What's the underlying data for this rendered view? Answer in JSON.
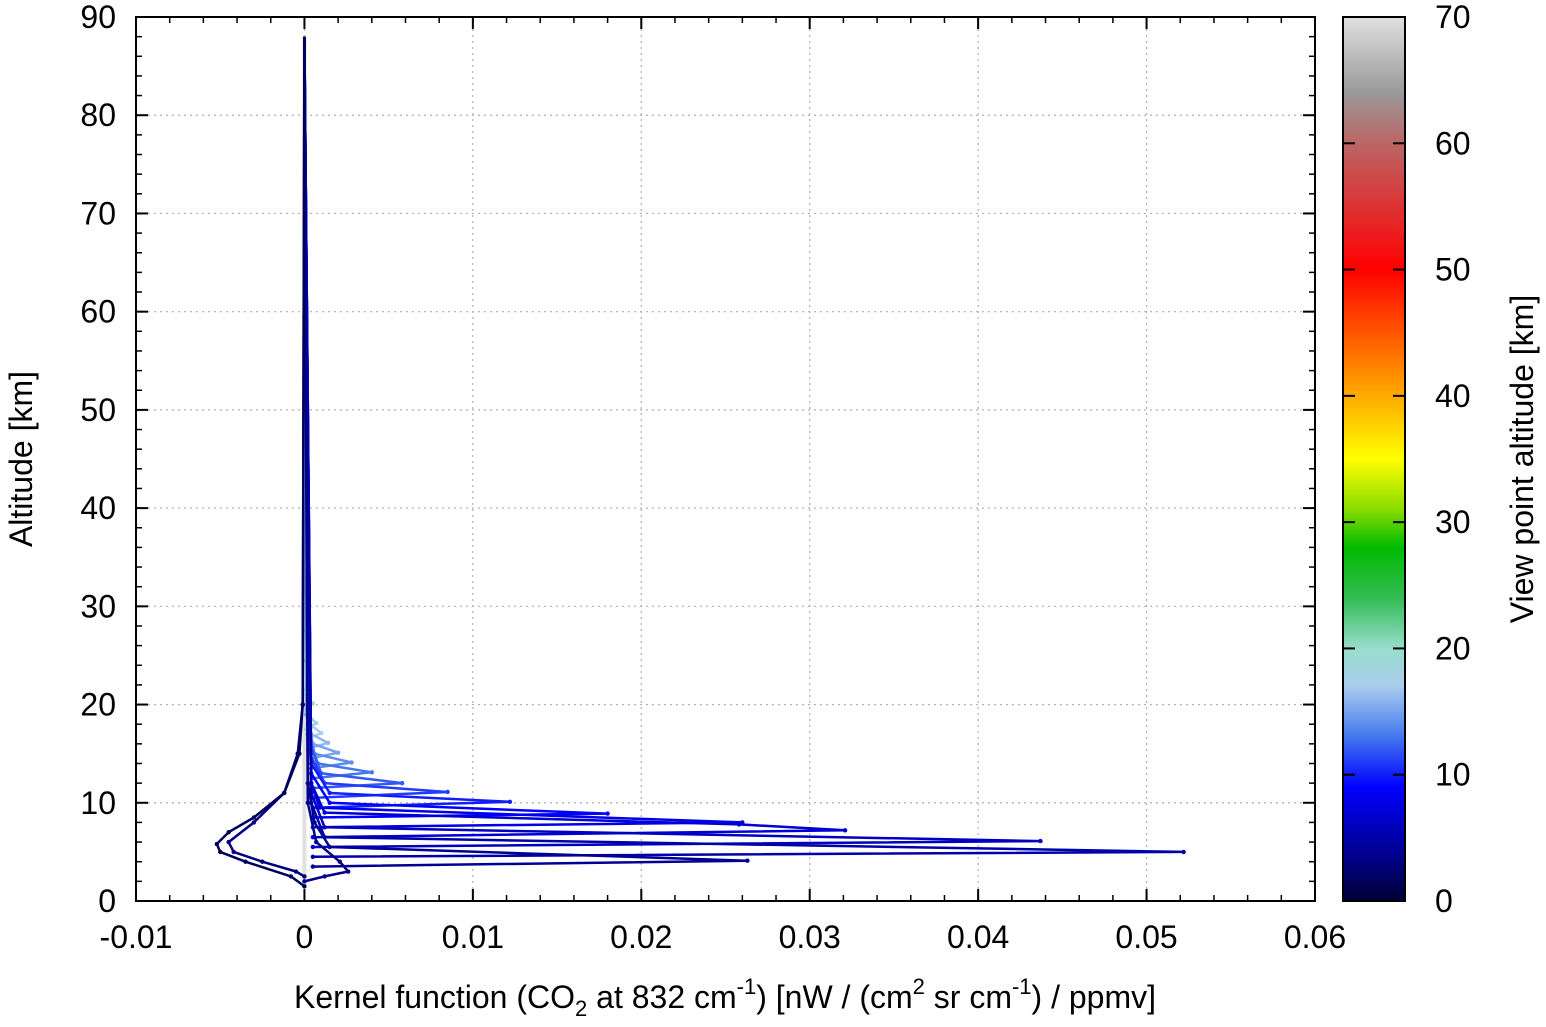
{
  "chart_data": {
    "type": "line",
    "title": "",
    "xlabel": {
      "pre": "Kernel function (CO",
      "sub": "2",
      "mid": " at 832 cm",
      "sup1": "-1",
      "post1": ") [nW / (cm",
      "sup2": "2",
      "post2": " sr cm",
      "sup3": "-1",
      "post3": ") / ppmv]"
    },
    "ylabel": "Altitude [km]",
    "xlim": [
      -0.01,
      0.06
    ],
    "ylim": [
      0,
      90
    ],
    "xticks": [
      -0.01,
      0,
      0.01,
      0.02,
      0.03,
      0.04,
      0.05,
      0.06
    ],
    "xtick_labels": [
      "-0.01",
      "0",
      "0.01",
      "0.02",
      "0.03",
      "0.04",
      "0.05",
      "0.06"
    ],
    "yticks": [
      0,
      10,
      20,
      30,
      40,
      50,
      60,
      70,
      80,
      90
    ],
    "ytick_labels": [
      "0",
      "10",
      "20",
      "30",
      "40",
      "50",
      "60",
      "70",
      "80",
      "90"
    ],
    "grid": true,
    "colorbar": {
      "label": "View point altitude [km]",
      "range": [
        0,
        70
      ],
      "ticks": [
        0,
        10,
        20,
        30,
        40,
        50,
        60,
        70
      ],
      "tick_labels": [
        "0",
        "10",
        "20",
        "30",
        "40",
        "50",
        "60",
        "70"
      ],
      "colors": [
        {
          "v": 0,
          "c": "#000033"
        },
        {
          "v": 3,
          "c": "#000080"
        },
        {
          "v": 9,
          "c": "#0000ff"
        },
        {
          "v": 13,
          "c": "#4477ee"
        },
        {
          "v": 17,
          "c": "#aaccee"
        },
        {
          "v": 20,
          "c": "#99ddcc"
        },
        {
          "v": 24,
          "c": "#33bb55"
        },
        {
          "v": 28,
          "c": "#00bb00"
        },
        {
          "v": 31,
          "c": "#88dd00"
        },
        {
          "v": 35,
          "c": "#ffff00"
        },
        {
          "v": 40,
          "c": "#ffaa00"
        },
        {
          "v": 44,
          "c": "#ff6600"
        },
        {
          "v": 50,
          "c": "#ff0000"
        },
        {
          "v": 55,
          "c": "#dd3333"
        },
        {
          "v": 60,
          "c": "#bb6666"
        },
        {
          "v": 64,
          "c": "#999999"
        },
        {
          "v": 70,
          "c": "#e0e0e0"
        }
      ]
    },
    "series": [
      {
        "vp": 1.5,
        "x": [
          0,
          -0.0008,
          -0.0035,
          -0.005,
          -0.0052,
          -0.0045,
          -0.003,
          -0.0012,
          -0.0003,
          -0.0001,
          0
        ],
        "y": [
          1.5,
          2.5,
          4,
          5,
          5.8,
          7,
          8.5,
          11,
          15,
          20,
          88
        ]
      },
      {
        "vp": 3,
        "x": [
          0,
          -0.0005,
          -0.0025,
          -0.0042,
          -0.0045,
          -0.003,
          -0.0012,
          -0.0004,
          -0.0001,
          0
        ],
        "y": [
          2.5,
          3,
          4,
          5,
          6,
          8,
          11,
          15,
          20,
          88
        ]
      },
      {
        "vp": 3.5,
        "x": [
          0,
          0.0012,
          0.0026,
          0.0021,
          0.0007,
          0.0002,
          0
        ],
        "y": [
          2,
          2.5,
          3,
          4,
          6,
          10,
          88
        ]
      },
      {
        "vp": 4,
        "x": [
          0.0005,
          0.0263,
          0.0015,
          0.0006,
          0.0002,
          0
        ],
        "y": [
          3.5,
          4.1,
          5.5,
          8,
          12,
          88
        ]
      },
      {
        "vp": 5,
        "x": [
          0.0005,
          0.0522,
          0.0012,
          0.0004,
          0
        ],
        "y": [
          4.5,
          5,
          6.5,
          10,
          88
        ]
      },
      {
        "vp": 6,
        "x": [
          0.0005,
          0.0437,
          0.0012,
          0.0004,
          0
        ],
        "y": [
          5.5,
          6.1,
          7.5,
          11,
          88
        ]
      },
      {
        "vp": 7,
        "x": [
          0.0005,
          0.0321,
          0.0258,
          0.0012,
          0.0004,
          0
        ],
        "y": [
          6.5,
          7.2,
          7.8,
          9,
          12,
          88
        ]
      },
      {
        "vp": 8,
        "x": [
          0.0005,
          0.026,
          0.0009,
          0.0004,
          0
        ],
        "y": [
          7.5,
          8,
          9.5,
          12,
          88
        ]
      },
      {
        "vp": 9,
        "x": [
          0.0005,
          0.018,
          0.0015,
          0.0004,
          0
        ],
        "y": [
          8.5,
          8.9,
          10,
          13,
          88
        ]
      },
      {
        "vp": 10,
        "x": [
          0.0005,
          0.0122,
          0.0015,
          0.0004,
          0
        ],
        "y": [
          9.5,
          10.1,
          11,
          14,
          88
        ]
      },
      {
        "vp": 11,
        "x": [
          0.0005,
          0.0085,
          0.0012,
          0.0003,
          0
        ],
        "y": [
          10.5,
          11.1,
          12,
          15,
          88
        ]
      },
      {
        "vp": 12,
        "x": [
          0.0005,
          0.0058,
          0.001,
          0.0003,
          0
        ],
        "y": [
          11.5,
          12,
          13,
          16,
          88
        ]
      },
      {
        "vp": 13,
        "x": [
          0.0005,
          0.004,
          0.0008,
          0.0002,
          0
        ],
        "y": [
          12.5,
          13.1,
          14,
          17,
          88
        ]
      },
      {
        "vp": 14,
        "x": [
          0.0004,
          0.0028,
          0.0006,
          0.0002,
          0
        ],
        "y": [
          13.5,
          14.1,
          15,
          18,
          88
        ]
      },
      {
        "vp": 15,
        "x": [
          0.0003,
          0.002,
          0.0005,
          0.0001,
          0
        ],
        "y": [
          14.5,
          15.1,
          16,
          19,
          88
        ]
      },
      {
        "vp": 16,
        "x": [
          0.0002,
          0.0014,
          0.0004,
          0.0001,
          0
        ],
        "y": [
          15.5,
          16.1,
          17,
          20,
          88
        ]
      },
      {
        "vp": 17,
        "x": [
          0.0002,
          0.001,
          0.0003,
          0
        ],
        "y": [
          16.5,
          17.1,
          18,
          88
        ]
      },
      {
        "vp": 18,
        "x": [
          0.0001,
          0.0007,
          0.0002,
          0
        ],
        "y": [
          17.5,
          18.1,
          19,
          88
        ]
      },
      {
        "vp": 20,
        "x": [
          0.0001,
          0.0005,
          0.0001,
          0
        ],
        "y": [
          19.5,
          20.1,
          21,
          88
        ]
      },
      {
        "vp": 22,
        "x": [
          0.0001,
          0.0003,
          0
        ],
        "y": [
          21.5,
          22.1,
          88
        ]
      },
      {
        "vp": 25,
        "x": [
          0.0001,
          0.00025,
          0
        ],
        "y": [
          24.5,
          25.1,
          88
        ]
      },
      {
        "vp": 28,
        "x": [
          0.0001,
          0.0002,
          0
        ],
        "y": [
          27.5,
          28.1,
          88
        ]
      },
      {
        "vp": 32,
        "x": [
          0,
          0.00015,
          0
        ],
        "y": [
          31.5,
          32.1,
          88
        ]
      },
      {
        "vp": 36,
        "x": [
          0,
          0.00015,
          0
        ],
        "y": [
          35.5,
          36.1,
          88
        ]
      },
      {
        "vp": 40,
        "x": [
          0,
          0.0001,
          0
        ],
        "y": [
          39.5,
          40.1,
          88
        ]
      },
      {
        "vp": 45,
        "x": [
          0,
          0.0001,
          0
        ],
        "y": [
          44.5,
          45.1,
          88
        ]
      },
      {
        "vp": 50,
        "x": [
          0,
          0.0001,
          0
        ],
        "y": [
          49.5,
          50.1,
          88
        ]
      },
      {
        "vp": 55,
        "x": [
          0,
          5e-05,
          0
        ],
        "y": [
          54.5,
          55.1,
          88
        ]
      },
      {
        "vp": 60,
        "x": [
          0,
          5e-05,
          0
        ],
        "y": [
          59.5,
          60.1,
          88
        ]
      },
      {
        "vp": 70,
        "x": [
          0,
          0
        ],
        "y": [
          1.5,
          88
        ]
      }
    ]
  }
}
